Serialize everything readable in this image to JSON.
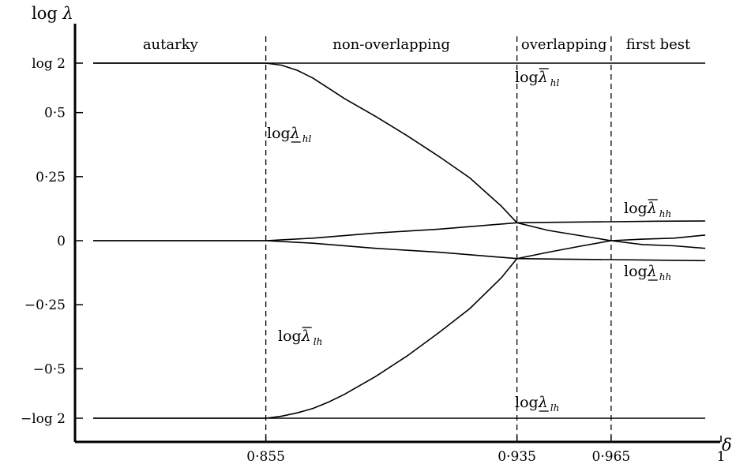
{
  "chart_data": {
    "type": "line",
    "title": "",
    "xlabel": "δ",
    "ylabel": "log λ",
    "xlim": [
      0.8,
      1.0
    ],
    "ylim": [
      -0.78,
      0.78
    ],
    "grid": false,
    "x_ticks": [
      {
        "value": 0.855,
        "label": "0·855"
      },
      {
        "value": 0.935,
        "label": "0·935"
      },
      {
        "value": 0.965,
        "label": "0·965"
      },
      {
        "value": 1.0,
        "label": "1"
      }
    ],
    "y_ticks": [
      {
        "value": 0.6931,
        "label": "log 2"
      },
      {
        "value": 0.5,
        "label": "0·5"
      },
      {
        "value": 0.25,
        "label": "0·25"
      },
      {
        "value": 0.0,
        "label": "0"
      },
      {
        "value": -0.25,
        "label": "−0·25"
      },
      {
        "value": -0.5,
        "label": "−0·5"
      },
      {
        "value": -0.6931,
        "label": "−log 2"
      }
    ],
    "regions": [
      {
        "label": "autarky",
        "from": 0.8,
        "to": 0.855
      },
      {
        "label": "non-overlapping",
        "from": 0.855,
        "to": 0.935
      },
      {
        "label": "overlapping",
        "from": 0.935,
        "to": 0.965
      },
      {
        "label": "first best",
        "from": 0.965,
        "to": 1.0
      }
    ],
    "boundaries": [
      0.855,
      0.935,
      0.965
    ],
    "series": [
      {
        "label": {
          "prefix": "log ",
          "sym": "λ",
          "bar": "over",
          "sub": "hl"
        },
        "points": [
          [
            0.8,
            0.6931
          ],
          [
            0.995,
            0.6931
          ]
        ]
      },
      {
        "label": {
          "prefix": "log ",
          "sym": "λ",
          "bar": "under",
          "sub": "hl"
        },
        "points": [
          [
            0.8,
            0.6931
          ],
          [
            0.855,
            0.6931
          ],
          [
            0.86,
            0.685
          ],
          [
            0.865,
            0.665
          ],
          [
            0.87,
            0.635
          ],
          [
            0.875,
            0.595
          ],
          [
            0.88,
            0.555
          ],
          [
            0.89,
            0.485
          ],
          [
            0.9,
            0.41
          ],
          [
            0.91,
            0.33
          ],
          [
            0.92,
            0.245
          ],
          [
            0.93,
            0.135
          ],
          [
            0.935,
            0.07
          ],
          [
            0.945,
            0.04
          ],
          [
            0.955,
            0.02
          ],
          [
            0.965,
            0.0
          ],
          [
            0.975,
            -0.015
          ],
          [
            0.985,
            -0.02
          ],
          [
            0.995,
            -0.03
          ]
        ]
      },
      {
        "label": {
          "prefix": "log ",
          "sym": "λ",
          "bar": "over",
          "sub": "hh"
        },
        "points": [
          [
            0.8,
            0.0
          ],
          [
            0.855,
            0.0
          ],
          [
            0.87,
            0.01
          ],
          [
            0.89,
            0.03
          ],
          [
            0.91,
            0.045
          ],
          [
            0.935,
            0.07
          ],
          [
            0.95,
            0.072
          ],
          [
            0.965,
            0.074
          ],
          [
            0.98,
            0.076
          ],
          [
            0.995,
            0.077
          ]
        ]
      },
      {
        "label": {
          "prefix": "log ",
          "sym": "λ",
          "bar": "under",
          "sub": "hh"
        },
        "points": [
          [
            0.8,
            0.0
          ],
          [
            0.855,
            0.0
          ],
          [
            0.87,
            -0.01
          ],
          [
            0.89,
            -0.03
          ],
          [
            0.91,
            -0.045
          ],
          [
            0.935,
            -0.07
          ],
          [
            0.95,
            -0.072
          ],
          [
            0.965,
            -0.074
          ],
          [
            0.98,
            -0.076
          ],
          [
            0.995,
            -0.078
          ]
        ]
      },
      {
        "label": {
          "prefix": "log ",
          "sym": "λ",
          "bar": "over",
          "sub": "lh"
        },
        "points": [
          [
            0.8,
            -0.6931
          ],
          [
            0.855,
            -0.6931
          ],
          [
            0.86,
            -0.685
          ],
          [
            0.865,
            -0.672
          ],
          [
            0.87,
            -0.655
          ],
          [
            0.875,
            -0.63
          ],
          [
            0.88,
            -0.6
          ],
          [
            0.89,
            -0.53
          ],
          [
            0.9,
            -0.45
          ],
          [
            0.91,
            -0.36
          ],
          [
            0.92,
            -0.265
          ],
          [
            0.93,
            -0.145
          ],
          [
            0.935,
            -0.07
          ],
          [
            0.945,
            -0.045
          ],
          [
            0.955,
            -0.022
          ],
          [
            0.965,
            0.0
          ],
          [
            0.975,
            0.006
          ],
          [
            0.985,
            0.01
          ],
          [
            0.995,
            0.022
          ]
        ]
      },
      {
        "label": {
          "prefix": "log ",
          "sym": "λ",
          "bar": "under",
          "sub": "lh"
        },
        "points": [
          [
            0.8,
            -0.6931
          ],
          [
            0.995,
            -0.6931
          ]
        ]
      }
    ]
  }
}
